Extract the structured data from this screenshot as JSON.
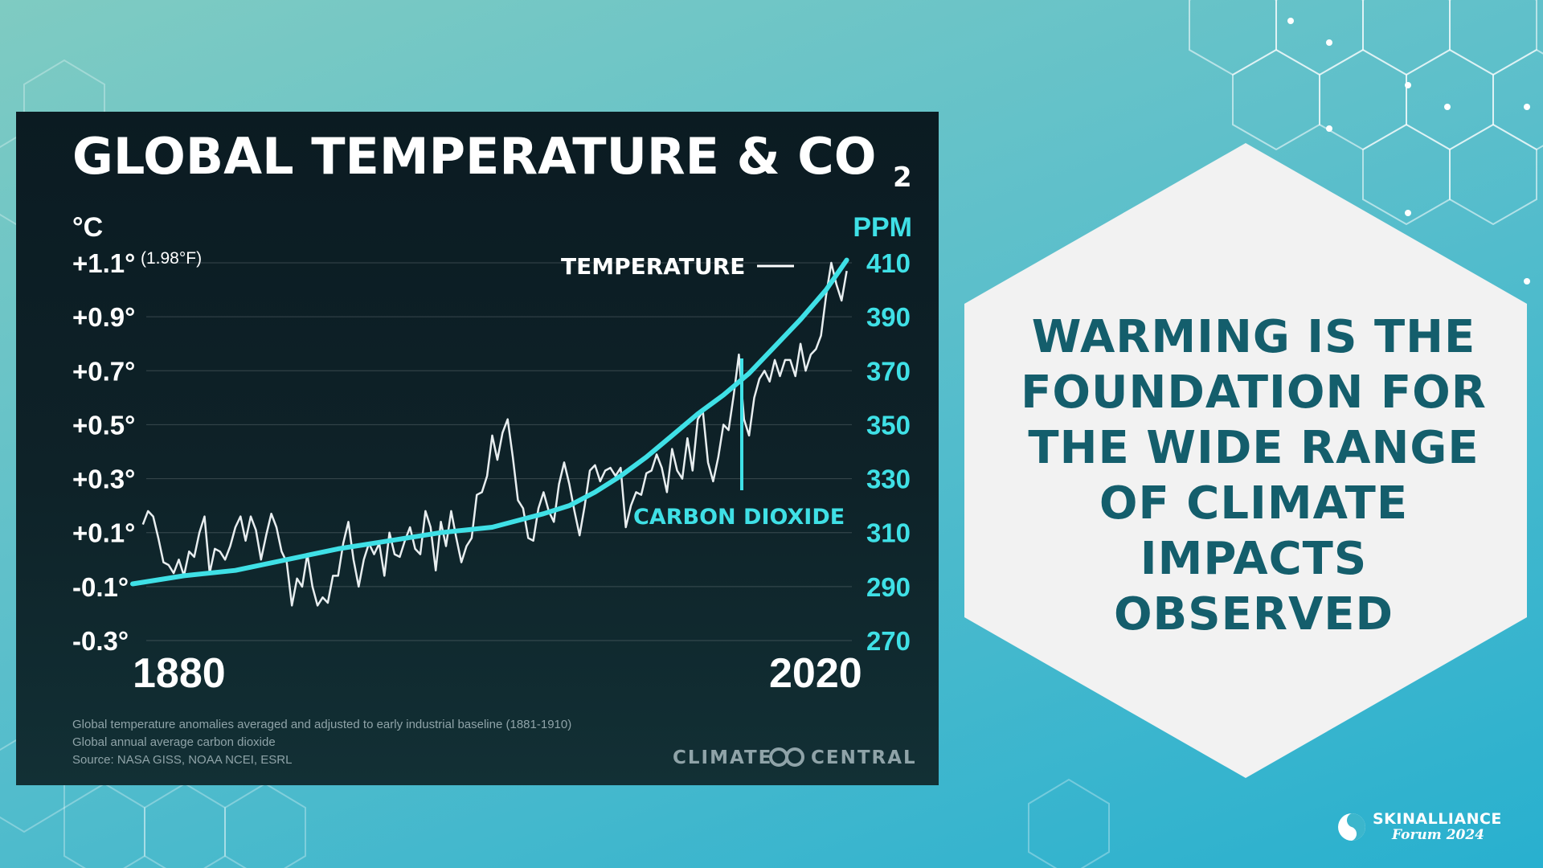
{
  "slide": {
    "headline_lines": [
      "WARMING IS THE",
      "FOUNDATION FOR",
      "THE WIDE RANGE",
      "OF CLIMATE",
      "IMPACTS",
      "OBSERVED"
    ],
    "brand_name": "SKINALLIANCE",
    "brand_sub": "Forum 2024",
    "colors": {
      "background_start": "#7fcbc2",
      "background_end": "#28b0cf",
      "card": "#f2f2f2",
      "headline": "#145e6c"
    }
  },
  "chart_data": {
    "type": "line",
    "title": "GLOBAL TEMPERATURE & CO",
    "title_subscript": "2",
    "left_axis": {
      "unit": "°C",
      "ticks": [
        "+1.1°",
        "+0.9°",
        "+0.7°",
        "+0.5°",
        "+0.3°",
        "+0.1°",
        "-0.1°",
        "-0.3°"
      ],
      "tick_values": [
        1.1,
        0.9,
        0.7,
        0.5,
        0.3,
        0.1,
        -0.1,
        -0.3
      ],
      "range": [
        -0.3,
        1.1
      ],
      "extra_label": "(1.98°F)"
    },
    "right_axis": {
      "unit": "PPM",
      "ticks": [
        "410",
        "390",
        "370",
        "350",
        "330",
        "310",
        "290",
        "270"
      ],
      "range": [
        270,
        410
      ]
    },
    "x_axis": {
      "start_label": "1880",
      "end_label": "2020",
      "range": [
        1880,
        2020
      ]
    },
    "grid": true,
    "colors": {
      "temperature": "#e8eef0",
      "co2": "#3fe0e6",
      "panel": "#0d1f25"
    },
    "series": [
      {
        "name": "TEMPERATURE",
        "axis": "left",
        "x": [
          1882,
          1883,
          1884,
          1885,
          1886,
          1887,
          1888,
          1889,
          1890,
          1891,
          1892,
          1893,
          1894,
          1895,
          1896,
          1897,
          1898,
          1899,
          1900,
          1901,
          1902,
          1903,
          1904,
          1905,
          1906,
          1907,
          1908,
          1909,
          1910,
          1911,
          1912,
          1913,
          1914,
          1915,
          1916,
          1917,
          1918,
          1919,
          1920,
          1921,
          1922,
          1923,
          1924,
          1925,
          1926,
          1927,
          1928,
          1929,
          1930,
          1931,
          1932,
          1933,
          1934,
          1935,
          1936,
          1937,
          1938,
          1939,
          1940,
          1941,
          1942,
          1943,
          1944,
          1945,
          1946,
          1947,
          1948,
          1949,
          1950,
          1951,
          1952,
          1953,
          1954,
          1955,
          1956,
          1957,
          1958,
          1959,
          1960,
          1961,
          1962,
          1963,
          1964,
          1965,
          1966,
          1967,
          1968,
          1969,
          1970,
          1971,
          1972,
          1973,
          1974,
          1975,
          1976,
          1977,
          1978,
          1979,
          1980,
          1981,
          1982,
          1983,
          1984,
          1985,
          1986,
          1987,
          1988,
          1989,
          1990,
          1991,
          1992,
          1993,
          1994,
          1995,
          1996,
          1997,
          1998,
          1999,
          2000,
          2001,
          2002,
          2003,
          2004,
          2005,
          2006,
          2007,
          2008,
          2009,
          2010,
          2011,
          2012,
          2013,
          2014,
          2015,
          2016,
          2017,
          2018,
          2019
        ],
        "values": [
          0.13,
          0.18,
          0.16,
          0.08,
          -0.01,
          -0.02,
          -0.05,
          0.0,
          -0.06,
          0.03,
          0.01,
          0.1,
          0.16,
          -0.05,
          0.04,
          0.03,
          0.0,
          0.05,
          0.12,
          0.16,
          0.07,
          0.16,
          0.11,
          0.0,
          0.09,
          0.17,
          0.12,
          0.03,
          -0.01,
          -0.17,
          -0.07,
          -0.1,
          0.02,
          -0.1,
          -0.17,
          -0.14,
          -0.16,
          -0.06,
          -0.06,
          0.06,
          0.14,
          0.0,
          -0.1,
          0.0,
          0.06,
          0.02,
          0.06,
          -0.06,
          0.1,
          0.02,
          0.01,
          0.07,
          0.12,
          0.04,
          0.02,
          0.18,
          0.12,
          -0.04,
          0.14,
          0.05,
          0.18,
          0.08,
          -0.01,
          0.05,
          0.08,
          0.24,
          0.25,
          0.31,
          0.46,
          0.37,
          0.47,
          0.52,
          0.38,
          0.22,
          0.19,
          0.08,
          0.07,
          0.19,
          0.25,
          0.18,
          0.14,
          0.28,
          0.36,
          0.28,
          0.18,
          0.09,
          0.2,
          0.33,
          0.35,
          0.29,
          0.33,
          0.34,
          0.31,
          0.34,
          0.12,
          0.2,
          0.25,
          0.24,
          0.32,
          0.33,
          0.39,
          0.34,
          0.25,
          0.41,
          0.33,
          0.3,
          0.45,
          0.33,
          0.52,
          0.55,
          0.36,
          0.29,
          0.38,
          0.5,
          0.48,
          0.61,
          0.76,
          0.52,
          0.46,
          0.6,
          0.67,
          0.7,
          0.66,
          0.74,
          0.68,
          0.74,
          0.74,
          0.68,
          0.8,
          0.7,
          0.76,
          0.78,
          0.83,
          0.98,
          1.1,
          1.02,
          0.96,
          1.07
        ]
      },
      {
        "name": "CARBON DIOXIDE",
        "axis": "right",
        "x": [
          1880,
          1890,
          1900,
          1910,
          1920,
          1930,
          1940,
          1950,
          1960,
          1965,
          1970,
          1975,
          1980,
          1985,
          1990,
          1995,
          2000,
          2005,
          2010,
          2015,
          2019
        ],
        "values": [
          291,
          294,
          296,
          300,
          304,
          307,
          310,
          312,
          317,
          320,
          325,
          331,
          338,
          346,
          354,
          361,
          369,
          379,
          389,
          400,
          411
        ]
      }
    ],
    "annotations": [
      "TEMPERATURE",
      "CARBON DIOXIDE"
    ],
    "notes": [
      "Global temperature anomalies averaged and adjusted to early industrial baseline (1881-1910)",
      "Global annual average carbon dioxide",
      "Source: NASA GISS, NOAA NCEI, ESRL"
    ],
    "logo_left": "CLIMATE",
    "logo_right": "CENTRAL"
  }
}
